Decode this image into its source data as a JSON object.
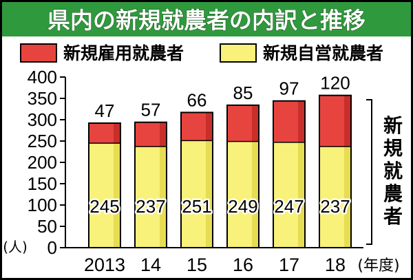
{
  "title": "県内の新規就農者の内訳と推移",
  "legend": [
    {
      "label": "新規雇用就農者",
      "color": "#e8443f"
    },
    {
      "label": "新規自営就農者",
      "color": "#f8f17a"
    }
  ],
  "colors": {
    "title_bg": "#2f9a3d",
    "title_text": "#ffffff",
    "employed": "#e8443f",
    "employed_shade": "#c92f2a",
    "self": "#f8f17a",
    "self_shade": "#e7dd52",
    "border": "#000000"
  },
  "y_unit": "(人)",
  "x_unit": "(年度)",
  "side_label": "新規就農者",
  "chart_data": {
    "type": "bar",
    "stacked": true,
    "categories": [
      "2013",
      "14",
      "15",
      "16",
      "17",
      "18"
    ],
    "series": [
      {
        "name": "新規自営就農者",
        "values": [
          245,
          237,
          251,
          249,
          247,
          237
        ]
      },
      {
        "name": "新規雇用就農者",
        "values": [
          47,
          57,
          66,
          85,
          97,
          120
        ]
      }
    ],
    "ylim": [
      0,
      400
    ],
    "yticks": [
      0,
      50,
      100,
      150,
      200,
      250,
      300,
      350,
      400
    ],
    "grid": false,
    "legend_position": "top"
  }
}
